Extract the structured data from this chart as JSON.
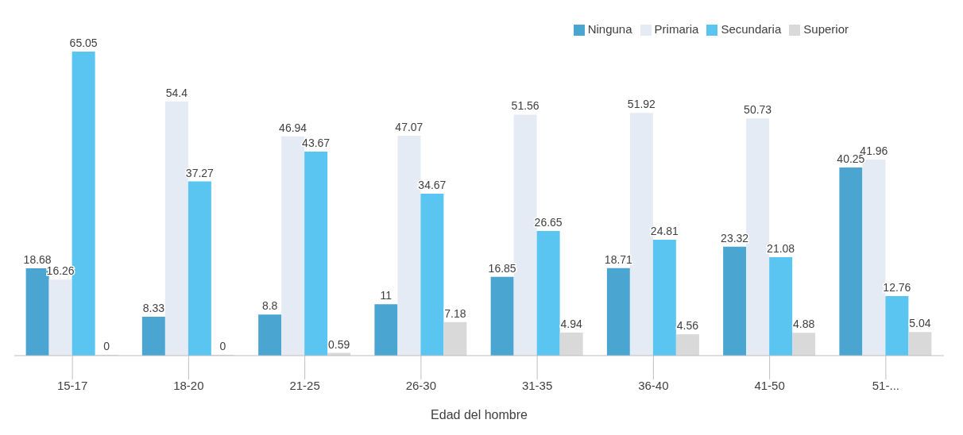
{
  "chart_data": {
    "type": "bar",
    "xlabel": "Edad del hombre",
    "categories": [
      "15-17",
      "18-20",
      "21-25",
      "26-30",
      "31-35",
      "36-40",
      "41-50",
      "51-..."
    ],
    "series": [
      {
        "name": "Ninguna",
        "color": "#4ba5d1",
        "values": [
          18.68,
          8.33,
          8.8,
          11,
          16.85,
          18.71,
          23.32,
          40.25
        ]
      },
      {
        "name": "Primaria",
        "color": "#e5ebf5",
        "values": [
          16.26,
          54.4,
          46.94,
          47.07,
          51.56,
          51.92,
          50.73,
          41.96
        ]
      },
      {
        "name": "Secundaria",
        "color": "#5bc5f2",
        "values": [
          65.05,
          37.27,
          43.67,
          34.67,
          26.65,
          24.81,
          21.08,
          12.76
        ]
      },
      {
        "name": "Superior",
        "color": "#d9d9d9",
        "values": [
          0,
          0,
          0.59,
          7.18,
          4.94,
          4.56,
          4.88,
          5.04
        ]
      }
    ],
    "data_labels": true,
    "legend": "top right",
    "grid": false,
    "tick_labels": "x"
  }
}
